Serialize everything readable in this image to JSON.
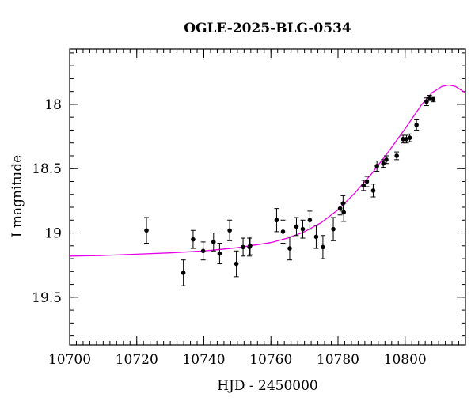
{
  "chart_data": {
    "type": "scatter",
    "title": "OGLE-2025-BLG-0534",
    "xlabel": "HJD - 2450000",
    "ylabel": "I magnitude",
    "xlim": [
      10700,
      10818
    ],
    "ylim": [
      19.87,
      17.57
    ],
    "y_inverted": true,
    "grid": false,
    "x_ticks": [
      10700,
      10720,
      10740,
      10760,
      10780,
      10800
    ],
    "x_tick_labels": [
      "10700",
      "10720",
      "10740",
      "10760",
      "10780",
      "10800"
    ],
    "y_ticks": [
      18,
      18.5,
      19,
      19.5
    ],
    "y_tick_labels": [
      "18",
      "18.5",
      "19",
      "19.5"
    ],
    "x_minor_step": 2,
    "y_minor_step": 0.1,
    "series": [
      {
        "kind": "errorbar-points",
        "color": "#000000",
        "points": [
          {
            "x": 10722.9,
            "y": 18.98,
            "err": 0.1
          },
          {
            "x": 10733.9,
            "y": 19.31,
            "err": 0.1
          },
          {
            "x": 10736.8,
            "y": 19.05,
            "err": 0.07
          },
          {
            "x": 10739.8,
            "y": 19.14,
            "err": 0.07
          },
          {
            "x": 10742.9,
            "y": 19.07,
            "err": 0.07
          },
          {
            "x": 10744.7,
            "y": 19.16,
            "err": 0.08
          },
          {
            "x": 10747.7,
            "y": 18.98,
            "err": 0.08
          },
          {
            "x": 10749.7,
            "y": 19.24,
            "err": 0.1
          },
          {
            "x": 10751.7,
            "y": 19.11,
            "err": 0.07
          },
          {
            "x": 10753.6,
            "y": 19.11,
            "err": 0.07
          },
          {
            "x": 10753.8,
            "y": 19.1,
            "err": 0.07
          },
          {
            "x": 10761.7,
            "y": 18.9,
            "err": 0.09
          },
          {
            "x": 10763.6,
            "y": 18.99,
            "err": 0.09
          },
          {
            "x": 10765.6,
            "y": 19.12,
            "err": 0.09
          },
          {
            "x": 10767.6,
            "y": 18.95,
            "err": 0.07
          },
          {
            "x": 10769.5,
            "y": 18.97,
            "err": 0.07
          },
          {
            "x": 10771.6,
            "y": 18.9,
            "err": 0.07
          },
          {
            "x": 10773.5,
            "y": 19.03,
            "err": 0.09
          },
          {
            "x": 10775.5,
            "y": 19.11,
            "err": 0.09
          },
          {
            "x": 10778.6,
            "y": 18.97,
            "err": 0.09
          },
          {
            "x": 10780.6,
            "y": 18.81,
            "err": 0.05
          },
          {
            "x": 10781.5,
            "y": 18.77,
            "err": 0.06
          },
          {
            "x": 10781.7,
            "y": 18.84,
            "err": 0.07
          },
          {
            "x": 10787.6,
            "y": 18.63,
            "err": 0.04
          },
          {
            "x": 10788.6,
            "y": 18.6,
            "err": 0.04
          },
          {
            "x": 10790.5,
            "y": 18.67,
            "err": 0.05
          },
          {
            "x": 10791.6,
            "y": 18.48,
            "err": 0.04
          },
          {
            "x": 10793.5,
            "y": 18.46,
            "err": 0.03
          },
          {
            "x": 10794.4,
            "y": 18.43,
            "err": 0.03
          },
          {
            "x": 10797.5,
            "y": 18.4,
            "err": 0.03
          },
          {
            "x": 10799.4,
            "y": 18.27,
            "err": 0.03
          },
          {
            "x": 10800.4,
            "y": 18.27,
            "err": 0.03
          },
          {
            "x": 10801.4,
            "y": 18.26,
            "err": 0.03
          },
          {
            "x": 10803.4,
            "y": 18.16,
            "err": 0.04
          },
          {
            "x": 10806.4,
            "y": 17.98,
            "err": 0.03
          },
          {
            "x": 10807.3,
            "y": 17.95,
            "err": 0.02
          },
          {
            "x": 10808.4,
            "y": 17.96,
            "err": 0.02
          }
        ]
      },
      {
        "kind": "model-curve",
        "color": "#e600e6",
        "x": [
          10700,
          10710,
          10720,
          10730,
          10740,
          10750,
          10760,
          10765,
          10770,
          10775,
          10780,
          10785,
          10790,
          10795,
          10800,
          10805,
          10808,
          10811,
          10813,
          10815,
          10818
        ],
        "y": [
          19.18,
          19.175,
          19.165,
          19.155,
          19.14,
          19.115,
          19.075,
          19.04,
          18.99,
          18.92,
          18.82,
          18.69,
          18.54,
          18.37,
          18.19,
          18.0,
          17.91,
          17.86,
          17.85,
          17.86,
          17.91
        ]
      }
    ]
  }
}
